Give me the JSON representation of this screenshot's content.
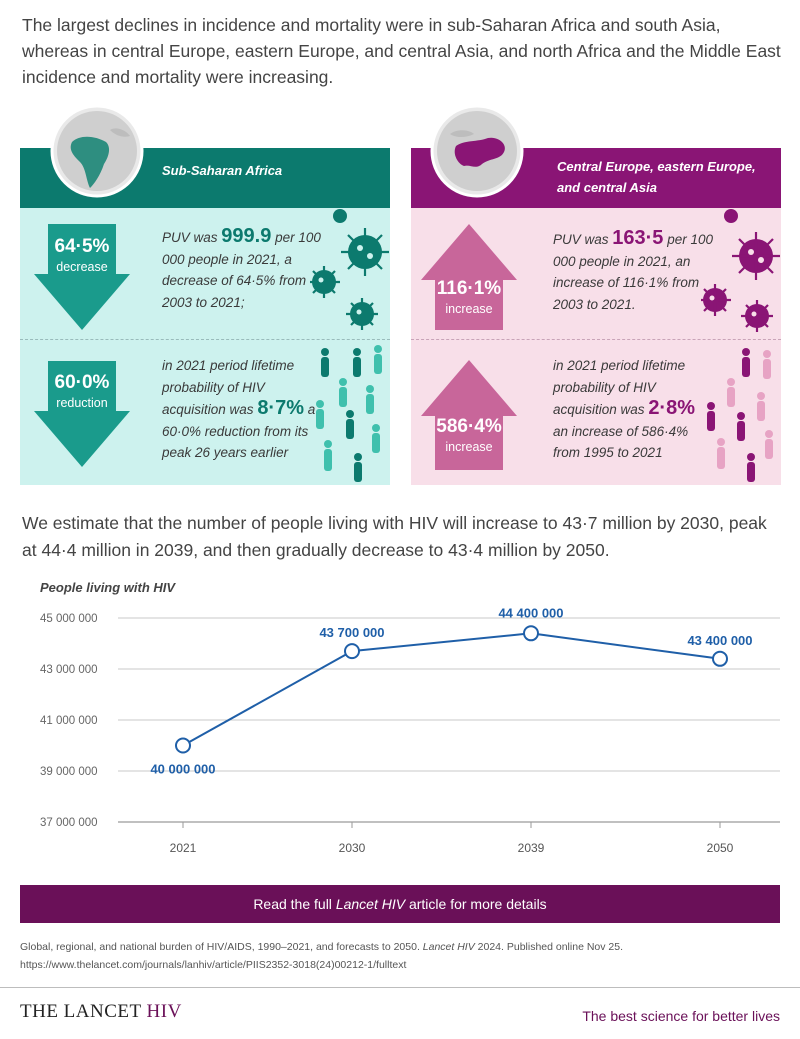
{
  "intro_text": "The largest declines in incidence and mortality were in sub-Saharan Africa and south Asia, whereas in central Europe, eastern Europe, and central Asia, and north Africa and the Middle East incidence and mortality were increasing.",
  "left_panel": {
    "title": "Sub-Saharan Africa",
    "stat1": {
      "big": "64·5%",
      "small": "decrease",
      "text_a": "PUV was ",
      "value": "999.9",
      "text_b": " per 100 000 people in 2021, a decrease of 64·5% from 2003 to 2021;"
    },
    "stat2": {
      "big": "60·0%",
      "small": "reduction",
      "text_a": "in 2021 period lifetime probability of HIV acquisition  was ",
      "value": "8·7%",
      "text_b": " a 60·0% reduction from its peak 26 years earlier"
    }
  },
  "right_panel": {
    "title_line1": "Central Europe, eastern Europe,",
    "title_line2": "and central Asia",
    "stat1": {
      "big": "116·1%",
      "small": "increase",
      "text_a": "PUV was ",
      "value": "163·5",
      "text_b": " per 100 000 people in 2021, an increase of 116·1% from 2003 to 2021."
    },
    "stat2": {
      "big": "586·4%",
      "small": "increase",
      "text_a": "in 2021 period lifetime probability of HIV acquisition was ",
      "value": "2·8%",
      "text_b": " an increase of 586·4% from 1995 to 2021"
    }
  },
  "estimate_text": "We estimate that the number of people living with HIV will increase to 43·7 million by 2030, peak at 44·4 million in 2039, and then gradually decrease to 43·4 million by 2050.",
  "chart_data": {
    "type": "line",
    "title": "People living with HIV",
    "x": [
      "2021",
      "2030",
      "2039",
      "2050"
    ],
    "values": [
      40000000,
      43700000,
      44400000,
      43400000
    ],
    "data_labels": [
      "40 000 000",
      "43 700 000",
      "44 400 000",
      "43 400 000"
    ],
    "y_ticks": [
      45000000,
      43000000,
      41000000,
      39000000,
      37000000
    ],
    "y_tick_labels": [
      "45 000 000",
      "43 000 000",
      "41 000 000",
      "39 000 000",
      "37 000 000"
    ],
    "ylim": [
      37000000,
      45000000
    ],
    "grid": true,
    "line_color": "#1f5fa8"
  },
  "banner": {
    "pre": "Read the full ",
    "journal": "Lancet HIV",
    "post": " article for more details"
  },
  "citation": {
    "line1_a": "Global, regional, and national burden of HIV/AIDS, 1990–2021, and forecasts to 2050. ",
    "line1_journal": "Lancet HIV",
    "line1_b": " 2024. Published online Nov 25.",
    "line2": "https://www.thelancet.com/journals/lanhiv/article/PIIS2352-3018(24)00212-1/fulltext"
  },
  "footer": {
    "brand": "THE LANCET",
    "brand_suffix": " HIV",
    "tagline": "The best science for better lives"
  },
  "colors": {
    "teal_dark": "#0c7a6e",
    "teal_mid": "#1a9b8c",
    "teal_light": "#cdf2ee",
    "purple_dark": "#8a1575",
    "pink_arrow": "#c8669a",
    "pink_light": "#f8dfe9",
    "banner": "#6a1058"
  }
}
